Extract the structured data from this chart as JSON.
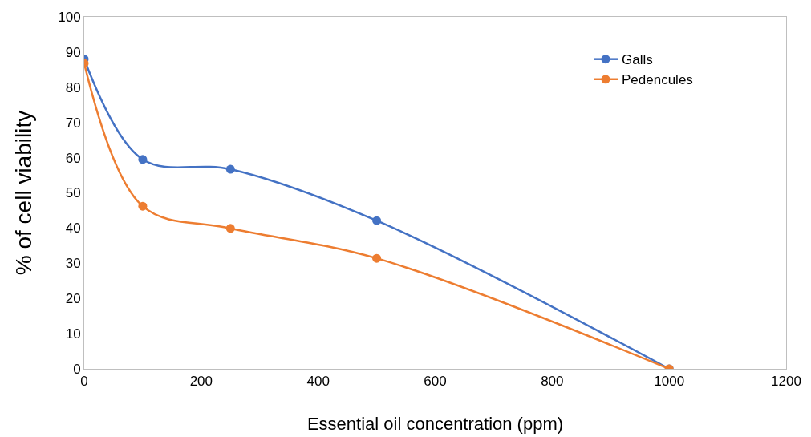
{
  "chart_data": {
    "type": "line",
    "xlabel": "Essential oil concentration (ppm)",
    "ylabel": "% of cell viability",
    "x": [
      0,
      100,
      250,
      500,
      1000
    ],
    "series": [
      {
        "name": "Galls",
        "color": "#4472c4",
        "values": [
          88,
          59.5,
          56.7,
          42.1,
          0
        ]
      },
      {
        "name": "Pedencules",
        "color": "#ed7d31",
        "values": [
          86.8,
          46.2,
          39.9,
          31.4,
          0
        ]
      }
    ],
    "xlim": [
      0,
      1200
    ],
    "xticks": [
      0,
      200,
      400,
      600,
      800,
      1000,
      1200
    ],
    "ylim": [
      0,
      100
    ],
    "yticks": [
      0,
      10,
      20,
      30,
      40,
      50,
      60,
      70,
      80,
      90,
      100
    ],
    "grid": false,
    "legend": "top right",
    "marker": "circle",
    "line_style": "solid"
  }
}
